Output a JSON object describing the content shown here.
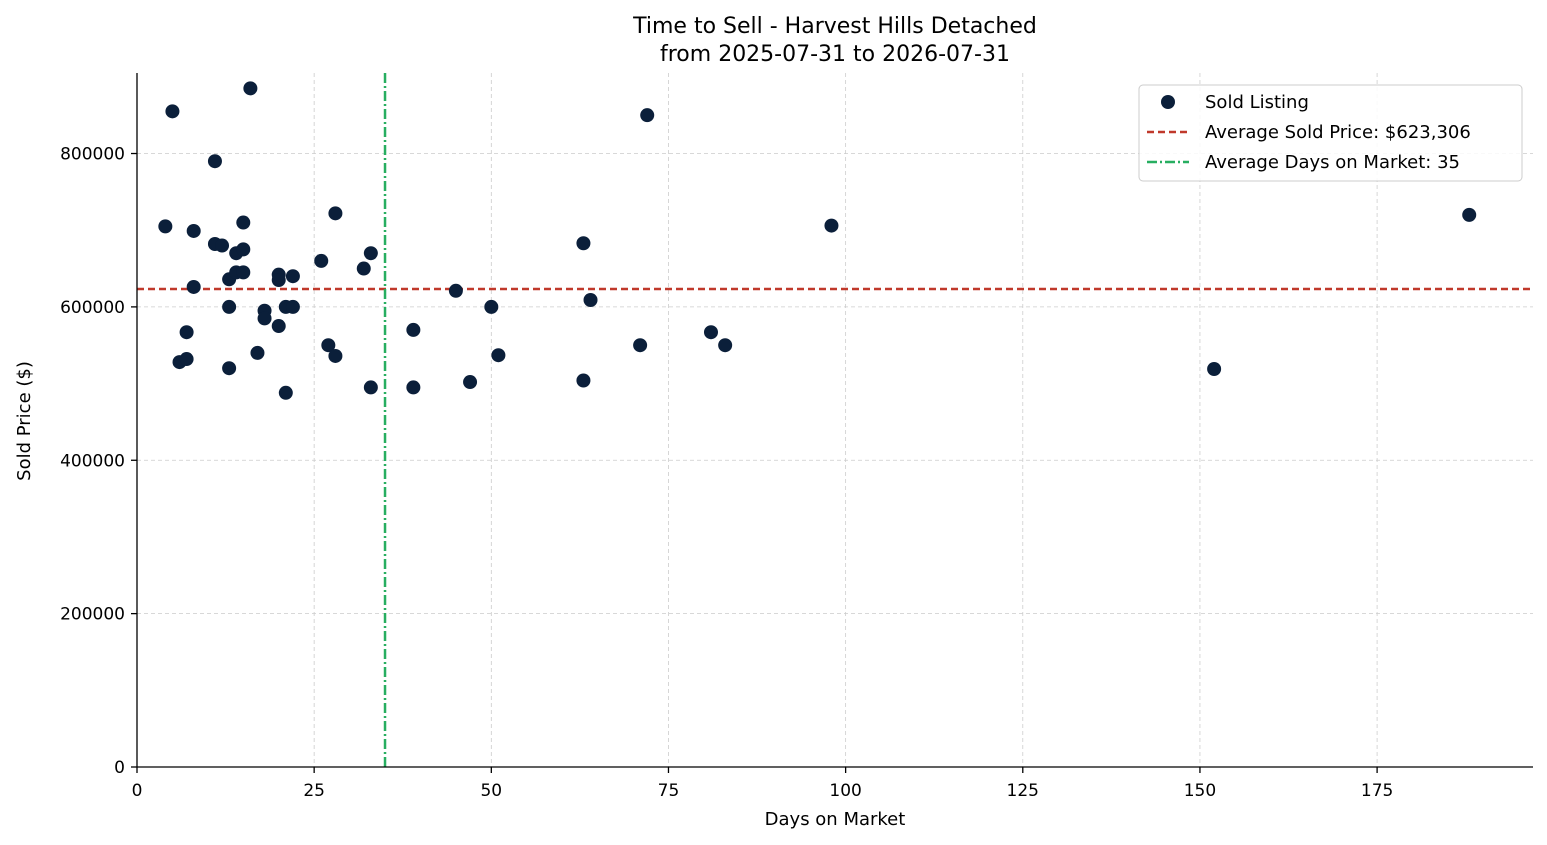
{
  "chart_data": {
    "type": "scatter",
    "title": "Time to Sell - Harvest Hills Detached",
    "subtitle": "from 2025-07-31 to 2026-07-31",
    "xlabel": "Days on Market",
    "ylabel": "Sold Price ($)",
    "xlim": [
      0,
      197
    ],
    "ylim": [
      0,
      905000
    ],
    "x_ticks": [
      0,
      25,
      50,
      75,
      100,
      125,
      150,
      175
    ],
    "y_ticks": [
      0,
      200000,
      400000,
      600000,
      800000
    ],
    "x_tick_labels": [
      "0",
      "25",
      "50",
      "75",
      "100",
      "125",
      "150",
      "175"
    ],
    "y_tick_labels": [
      "0",
      "200000",
      "400000",
      "600000",
      "800000"
    ],
    "grid": true,
    "legend_position": "top-right",
    "series": [
      {
        "name": "Sold Listing",
        "color": "#0b1f3a",
        "x": [
          4,
          5,
          6,
          7,
          7,
          8,
          8,
          11,
          11,
          12,
          13,
          13,
          13,
          14,
          14,
          15,
          15,
          15,
          16,
          17,
          18,
          18,
          20,
          20,
          20,
          21,
          21,
          22,
          22,
          26,
          27,
          28,
          28,
          32,
          33,
          33,
          39,
          39,
          45,
          47,
          50,
          51,
          63,
          63,
          64,
          71,
          72,
          81,
          83,
          98,
          152,
          188
        ],
        "y": [
          705000,
          855000,
          528000,
          532000,
          567000,
          699000,
          626000,
          790000,
          682000,
          680000,
          636000,
          600000,
          520000,
          670000,
          645000,
          710000,
          675000,
          645000,
          885000,
          540000,
          595000,
          585000,
          642000,
          635000,
          575000,
          600000,
          488000,
          600000,
          640000,
          660000,
          550000,
          722000,
          536000,
          650000,
          670000,
          495000,
          570000,
          495000,
          621000,
          502000,
          600000,
          537000,
          683000,
          504000,
          609000,
          550000,
          850000,
          567000,
          550000,
          706000,
          519000,
          720000
        ]
      }
    ],
    "reference_lines": [
      {
        "name": "Average Sold Price: $623,306",
        "orientation": "horizontal",
        "value": 623306,
        "color": "#c0392b",
        "style": "dashed"
      },
      {
        "name": "Average Days on Market: 35",
        "orientation": "vertical",
        "value": 35,
        "color": "#27ae60",
        "style": "dashdot"
      }
    ]
  }
}
